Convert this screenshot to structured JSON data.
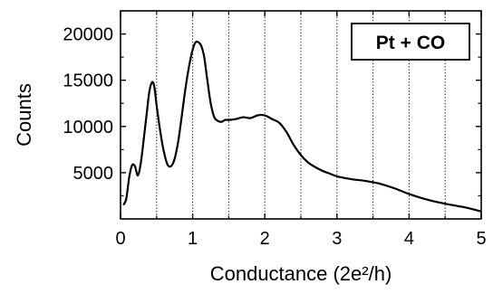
{
  "chart_data": {
    "type": "line",
    "title": "",
    "xlabel": "Conductance (2e²/h)",
    "ylabel": "Counts",
    "xlim": [
      0,
      5
    ],
    "ylim": [
      0,
      22500
    ],
    "x_ticks": [
      0,
      1,
      2,
      3,
      4,
      5
    ],
    "x_tick_labels": [
      "0",
      "1",
      "2",
      "3",
      "4",
      "5"
    ],
    "y_ticks": [
      5000,
      10000,
      15000,
      20000
    ],
    "y_tick_labels": [
      "5000",
      "10000",
      "15000",
      "20000"
    ],
    "x_minor_ticks": [
      0.5,
      1.5,
      2.5,
      3.5,
      4.5
    ],
    "grid": "vertical dotted at every 0.5",
    "legend_position": "top-right",
    "annotation": {
      "text": "Pt + CO"
    },
    "series": [
      {
        "color": "#000000",
        "x": [
          0.04,
          0.08,
          0.12,
          0.16,
          0.2,
          0.24,
          0.28,
          0.32,
          0.36,
          0.4,
          0.44,
          0.47,
          0.5,
          0.55,
          0.6,
          0.65,
          0.7,
          0.75,
          0.8,
          0.85,
          0.9,
          0.95,
          1.0,
          1.04,
          1.08,
          1.12,
          1.16,
          1.2,
          1.25,
          1.3,
          1.35,
          1.4,
          1.45,
          1.5,
          1.6,
          1.7,
          1.8,
          1.9,
          2.0,
          2.1,
          2.2,
          2.3,
          2.4,
          2.5,
          2.6,
          2.7,
          2.8,
          2.9,
          3.0,
          3.2,
          3.4,
          3.6,
          3.8,
          4.0,
          4.2,
          4.4,
          4.6,
          4.8,
          5.0
        ],
        "y": [
          1500,
          2200,
          4500,
          5800,
          5700,
          4700,
          6000,
          8500,
          11200,
          13800,
          14800,
          14200,
          12300,
          9500,
          7300,
          5900,
          5700,
          6500,
          8400,
          11200,
          14100,
          16500,
          18300,
          19100,
          19100,
          18700,
          17500,
          15200,
          12500,
          11000,
          10600,
          10500,
          10700,
          10700,
          10800,
          11000,
          10900,
          11200,
          11200,
          10800,
          10400,
          9400,
          8000,
          6900,
          6100,
          5600,
          5200,
          4900,
          4600,
          4300,
          4100,
          3800,
          3300,
          2700,
          2200,
          1800,
          1500,
          1200,
          800
        ]
      }
    ]
  }
}
